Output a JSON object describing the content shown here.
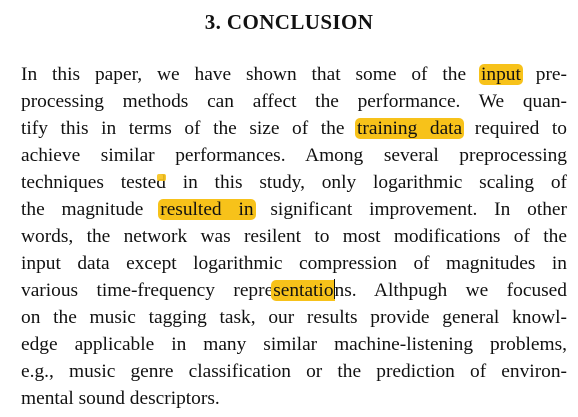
{
  "section": {
    "heading": "3.  CONCLUSION"
  },
  "paragraph": {
    "l1": {
      "a": "In this paper, we have shown that some of the",
      "h": "input",
      "b": "pre-"
    },
    "l2": {
      "a": "processing methods can affect the performance.  We quan-"
    },
    "l3": {
      "a": "tify this in terms of the size of the",
      "h": "training data",
      "b": "required to"
    },
    "l4": {
      "a": "achieve similar performances.  Among several preprocessing"
    },
    "l5": {
      "a": "techniques tested in this study, only logarithmic scaling of"
    },
    "l6": {
      "a": "the magnitude",
      "h": "resulted in",
      "b": "significant improvement.  In other"
    },
    "l7": {
      "a": "words, the network was resilent to most modifications of the"
    },
    "l8": {
      "a": "input data except logarithmic compression of magnitudes in"
    },
    "l9": {
      "a": "various time-frequency repre",
      "h": "sentatio",
      "c": "n",
      "b": "s.  Althpugh we focused"
    },
    "l10": {
      "a": "on the music tagging task, our results provide general knowl-"
    },
    "l11": {
      "a": "edge applicable in many similar machine-listening problems,"
    },
    "l12": {
      "a": "e.g., music genre classification or the prediction of environ-"
    },
    "l13": {
      "a": "mental sound descriptors."
    }
  },
  "colors": {
    "highlight": "#f7c21a",
    "text": "#111111",
    "background": "#ffffff"
  }
}
